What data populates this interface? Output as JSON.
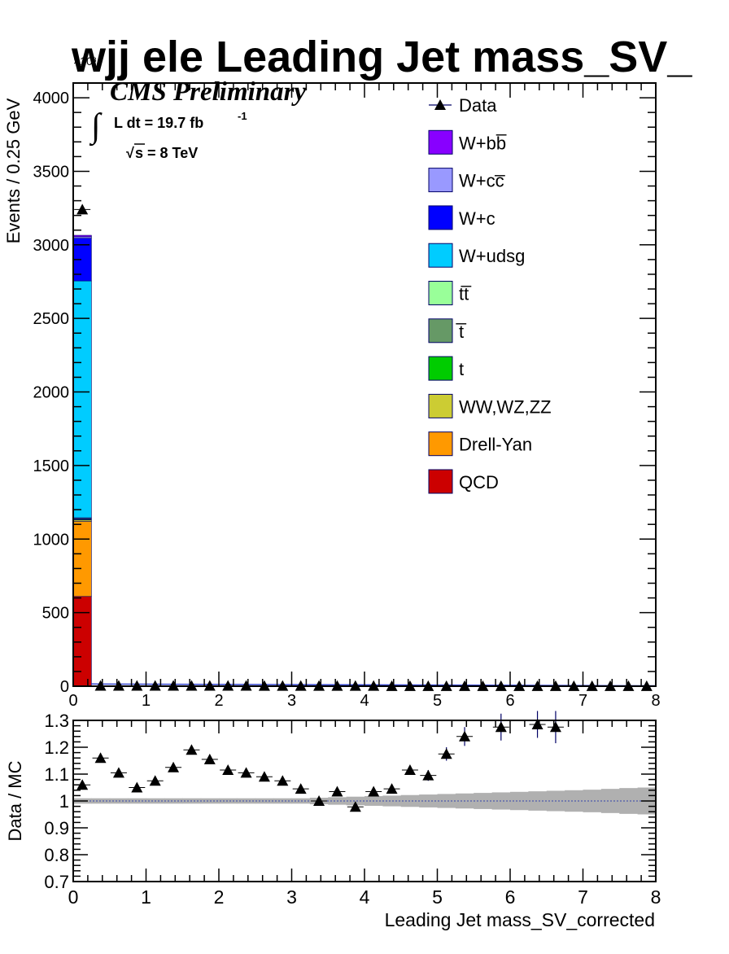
{
  "chart_data": [
    {
      "type": "bar",
      "panel": "main",
      "title": "wjj ele Leading Jet mass_SV_",
      "ylabel": "Events / 0.25 GeV",
      "y_multiplier": "×10³",
      "xlim": [
        0,
        8
      ],
      "ylim": [
        0,
        4100
      ],
      "x_ticks": [
        "0",
        "1",
        "2",
        "3",
        "4",
        "5",
        "6",
        "7",
        "8"
      ],
      "y_ticks": [
        "0",
        "500",
        "1000",
        "1500",
        "2000",
        "2500",
        "3000",
        "3500",
        "4000"
      ],
      "cms_label": "CMS Preliminary",
      "lumi_text": "L dt = 19.7 fb",
      "lumi_exp": "-1",
      "energy_text": "s = 8 TeV",
      "legend_position": "top-right",
      "stack_bin": {
        "x_low": 0,
        "x_high": 0.25
      },
      "stack": [
        {
          "name": "QCD",
          "color": "#cc0000",
          "value": 610
        },
        {
          "name": "Drell-Yan",
          "color": "#ff9900",
          "value": 510
        },
        {
          "name": "WW,WZ,ZZ",
          "color": "#cccc33",
          "value": 10
        },
        {
          "name": "t",
          "color": "#00cc00",
          "value": 5
        },
        {
          "name": "t̅",
          "color": "#669966",
          "value": 5
        },
        {
          "name": "tt̅",
          "color": "#99ff99",
          "value": 5
        },
        {
          "name": "W+udsg",
          "color": "#00ccff",
          "value": 1610
        },
        {
          "name": "W+c",
          "color": "#0000ff",
          "value": 290
        },
        {
          "name": "W+cc̅",
          "color": "#9999ff",
          "value": 10
        },
        {
          "name": "W+bb̅",
          "color": "#8800ff",
          "value": 10
        }
      ],
      "data_series": {
        "name": "Data",
        "x": [
          0.125,
          0.375,
          0.625,
          0.875,
          1.125,
          1.375,
          1.625,
          1.875,
          2.125,
          2.375,
          2.625,
          2.875,
          3.125,
          3.375,
          3.625,
          3.875,
          4.125,
          4.375,
          4.625,
          4.875,
          5.125,
          5.375,
          5.625,
          5.875,
          6.125,
          6.375,
          6.625,
          6.875,
          7.125,
          7.375,
          7.625,
          7.875
        ],
        "y": [
          3240,
          3,
          3,
          3,
          3,
          3,
          3,
          3,
          3,
          3,
          2,
          2,
          2,
          2,
          2,
          2,
          2,
          1,
          1,
          1,
          1,
          1,
          1,
          1,
          1,
          1,
          1,
          1,
          1,
          1,
          1,
          1
        ]
      },
      "legend": [
        {
          "label": "Data",
          "marker": "triangle"
        },
        {
          "label": "W+bb̅",
          "color": "#8800ff"
        },
        {
          "label": "W+cc̅",
          "color": "#9999ff"
        },
        {
          "label": "W+c",
          "color": "#0000ff"
        },
        {
          "label": "W+udsg",
          "color": "#00ccff"
        },
        {
          "label": "tt̅",
          "color": "#99ff99"
        },
        {
          "label": "t̅",
          "color": "#669966"
        },
        {
          "label": "t",
          "color": "#00cc00"
        },
        {
          "label": "WW,WZ,ZZ",
          "color": "#cccc33"
        },
        {
          "label": "Drell-Yan",
          "color": "#ff9900"
        },
        {
          "label": "QCD",
          "color": "#cc0000"
        }
      ]
    },
    {
      "type": "scatter",
      "panel": "ratio",
      "xlabel": "Leading Jet mass_SV_corrected",
      "ylabel": "Data / MC",
      "xlim": [
        0,
        8
      ],
      "ylim": [
        0.7,
        1.3
      ],
      "x_ticks": [
        "0",
        "1",
        "2",
        "3",
        "4",
        "5",
        "6",
        "7",
        "8"
      ],
      "y_ticks": [
        "0.7",
        "0.8",
        "0.9",
        "1",
        "1.1",
        "1.2",
        "1.3"
      ],
      "x": [
        0.125,
        0.375,
        0.625,
        0.875,
        1.125,
        1.375,
        1.625,
        1.875,
        2.125,
        2.375,
        2.625,
        2.875,
        3.125,
        3.375,
        3.625,
        3.875,
        4.125,
        4.375,
        4.625,
        4.875,
        5.125,
        5.375,
        5.875,
        6.375,
        6.625
      ],
      "y": [
        1.06,
        1.16,
        1.105,
        1.05,
        1.075,
        1.125,
        1.19,
        1.155,
        1.115,
        1.105,
        1.09,
        1.075,
        1.045,
        1.0,
        1.035,
        0.978,
        1.035,
        1.045,
        1.115,
        1.095,
        1.175,
        1.24,
        1.275,
        1.285,
        1.275
      ],
      "yerr": [
        0.005,
        0.005,
        0.005,
        0.005,
        0.005,
        0.005,
        0.005,
        0.005,
        0.006,
        0.006,
        0.007,
        0.008,
        0.008,
        0.009,
        0.01,
        0.011,
        0.012,
        0.013,
        0.015,
        0.02,
        0.025,
        0.035,
        0.05,
        0.05,
        0.06
      ],
      "mc_band_halfwidth": [
        0.01,
        0.01,
        0.01,
        0.01,
        0.01,
        0.01,
        0.01,
        0.01,
        0.01,
        0.01,
        0.01,
        0.01,
        0.01,
        0.012,
        0.014,
        0.016,
        0.018,
        0.02,
        0.022,
        0.024,
        0.026,
        0.028,
        0.03,
        0.032,
        0.034,
        0.036,
        0.038,
        0.04,
        0.042,
        0.045,
        0.048,
        0.05
      ]
    }
  ]
}
